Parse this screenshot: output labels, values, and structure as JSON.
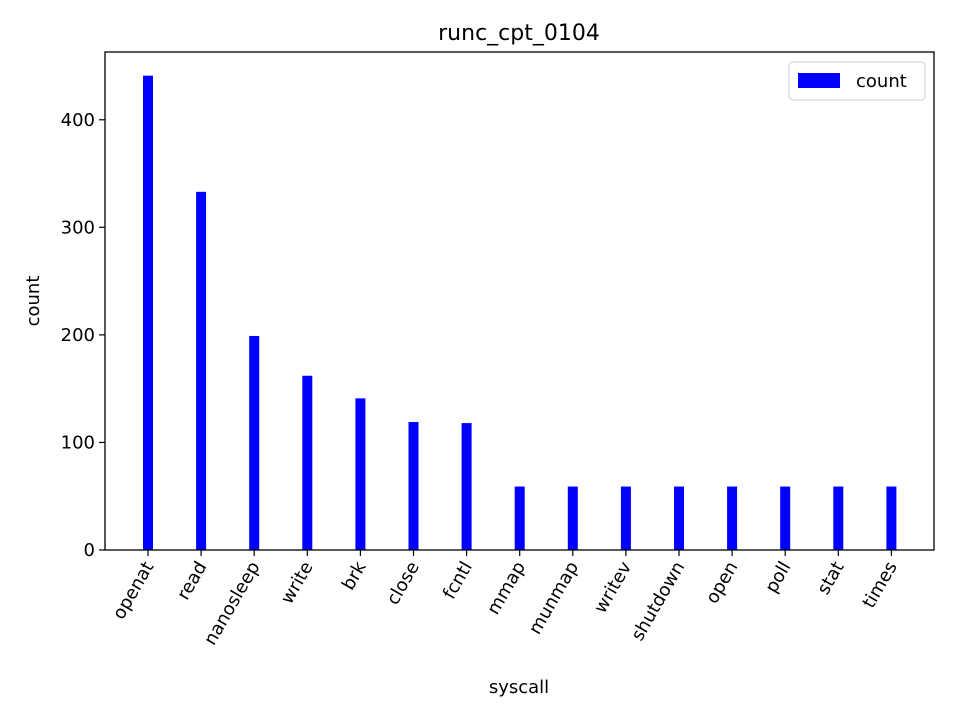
{
  "chart_data": {
    "type": "bar",
    "title": "runc_cpt_0104",
    "xlabel": "syscall",
    "ylabel": "count",
    "categories": [
      "openat",
      "read",
      "nanosleep",
      "write",
      "brk",
      "close",
      "fcntl",
      "mmap",
      "munmap",
      "writev",
      "shutdown",
      "open",
      "poll",
      "stat",
      "times"
    ],
    "series": [
      {
        "name": "count",
        "color": "#0000ff",
        "values": [
          441,
          333,
          199,
          162,
          141,
          119,
          118,
          59,
          59,
          59,
          59,
          59,
          59,
          59,
          59
        ]
      }
    ],
    "ylim": [
      0,
      463
    ],
    "yticks": [
      0,
      100,
      200,
      300,
      400
    ],
    "grid": false,
    "legend_position": "top-right",
    "xtick_rotation": "60 degrees"
  }
}
